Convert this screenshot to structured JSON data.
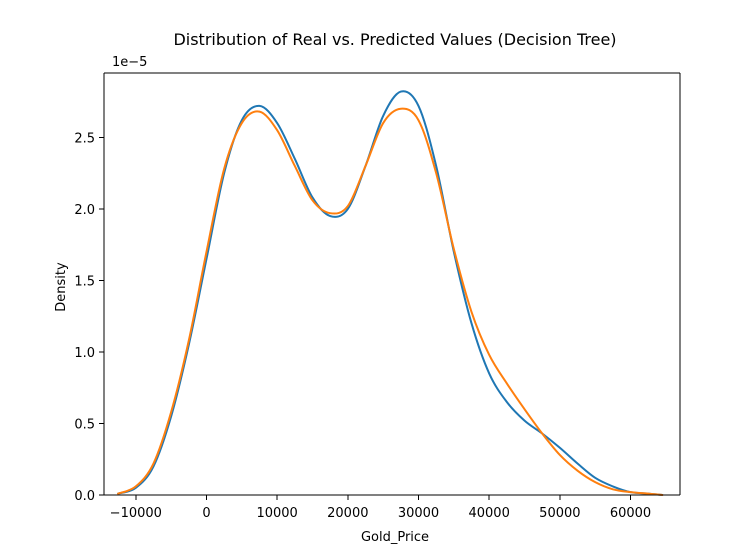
{
  "chart_data": {
    "type": "line",
    "title": "Distribution of Real vs. Predicted Values (Decision Tree)",
    "xlabel": "Gold_Price",
    "ylabel": "Density",
    "y_offset_label": "1e−5",
    "xlim": [
      -14500,
      67000
    ],
    "ylim": [
      0,
      2.95
    ],
    "x_ticks": [
      {
        "value": -10000,
        "label": "−10000"
      },
      {
        "value": 0,
        "label": "0"
      },
      {
        "value": 10000,
        "label": "10000"
      },
      {
        "value": 20000,
        "label": "20000"
      },
      {
        "value": 30000,
        "label": "30000"
      },
      {
        "value": 40000,
        "label": "40000"
      },
      {
        "value": 50000,
        "label": "50000"
      },
      {
        "value": 60000,
        "label": "60000"
      }
    ],
    "y_ticks": [
      {
        "value": 0.0,
        "label": "0.0"
      },
      {
        "value": 0.5,
        "label": "0.5"
      },
      {
        "value": 1.0,
        "label": "1.0"
      },
      {
        "value": 1.5,
        "label": "1.5"
      },
      {
        "value": 2.0,
        "label": "2.0"
      },
      {
        "value": 2.5,
        "label": "2.5"
      }
    ],
    "grid": false,
    "series": [
      {
        "color": "#1f77b4",
        "x": [
          -12500,
          -10000,
          -7500,
          -5000,
          -2500,
          0,
          2500,
          5000,
          7500,
          10000,
          12500,
          15000,
          17500,
          20000,
          22500,
          25000,
          27500,
          30000,
          32500,
          35000,
          37500,
          40000,
          42500,
          45000,
          47500,
          50000,
          52500,
          55000,
          57500,
          60000,
          62500,
          64500
        ],
        "y": [
          0.01,
          0.05,
          0.2,
          0.55,
          1.05,
          1.65,
          2.25,
          2.62,
          2.72,
          2.6,
          2.35,
          2.08,
          1.95,
          2.0,
          2.3,
          2.65,
          2.82,
          2.72,
          2.3,
          1.7,
          1.2,
          0.85,
          0.65,
          0.52,
          0.43,
          0.33,
          0.22,
          0.12,
          0.06,
          0.02,
          0.01,
          0.0
        ]
      },
      {
        "color": "#ff7f0e",
        "x": [
          -12500,
          -10000,
          -7500,
          -5000,
          -2500,
          0,
          2500,
          5000,
          7500,
          10000,
          12500,
          15000,
          17500,
          20000,
          22500,
          25000,
          27500,
          30000,
          32500,
          35000,
          37500,
          40000,
          42500,
          45000,
          47500,
          50000,
          52500,
          55000,
          57500,
          60000,
          62500,
          64500
        ],
        "y": [
          0.01,
          0.06,
          0.22,
          0.58,
          1.08,
          1.7,
          2.28,
          2.6,
          2.68,
          2.55,
          2.3,
          2.06,
          1.97,
          2.02,
          2.3,
          2.6,
          2.7,
          2.62,
          2.25,
          1.72,
          1.28,
          0.98,
          0.78,
          0.6,
          0.43,
          0.28,
          0.17,
          0.09,
          0.04,
          0.02,
          0.01,
          0.0
        ]
      }
    ]
  }
}
